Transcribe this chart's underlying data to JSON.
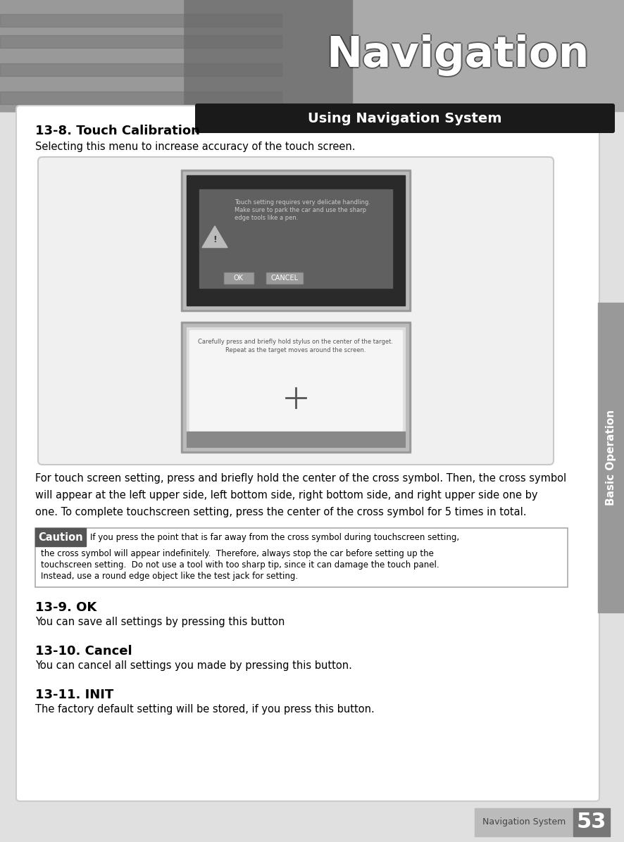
{
  "page_bg": "#e0e0e0",
  "content_bg": "#ffffff",
  "header_bg": "#1a1a1a",
  "header_text": "Using Navigation System",
  "header_text_color": "#ffffff",
  "nav_title": "Navigation",
  "section_title_1": "13-8. Touch Calibration",
  "section_body_1": "Selecting this menu to increase accuracy of the touch screen.",
  "section_para_1": "For touch screen setting, press and briefly hold the center of the cross symbol. Then, the cross symbol will appear at the left upper side, left bottom side, right bottom side, and right upper side one by one. To complete touchscreen setting, press the center of the cross symbol for 5 times in total.",
  "caution_label": "Caution",
  "caution_label_bg": "#555555",
  "caution_label_color": "#ffffff",
  "caution_line1": "If you press the point that is far away from the cross symbol during touchscreen setting,",
  "caution_line2": "the cross symbol will appear indefinitely.  Therefore, always stop the car before setting up the",
  "caution_line3": "touchscreen setting.  Do not use a tool with too sharp tip, since it can damage the touch panel.",
  "caution_line4": "Instead, use a round edge object like the test jack for setting.",
  "caution_box_border": "#aaaaaa",
  "section_title_2": "13-9. OK",
  "section_body_2": "You can save all settings by pressing this button",
  "section_title_3": "13-10. Cancel",
  "section_body_3": "You can cancel all settings you made by pressing this button.",
  "section_title_4": "13-11. INIT",
  "section_body_4": "The factory default setting will be stored, if you press this button.",
  "sidebar_text": "Basic Operation",
  "sidebar_bg": "#999999",
  "sidebar_text_color": "#ffffff",
  "footer_label": "Navigation System",
  "footer_number": "53",
  "footer_label_bg": "#bbbbbb",
  "footer_number_bg": "#777777",
  "photo_bg": "#888888",
  "photo_left_bg": "#666666",
  "screen1_bg": "#2a2a2a",
  "screen1_frame": "#777777",
  "screen2_frame": "#888888",
  "screen2_bg": "#e0e0e0",
  "dialog_bg": "#505050",
  "btn_bg": "#888888"
}
